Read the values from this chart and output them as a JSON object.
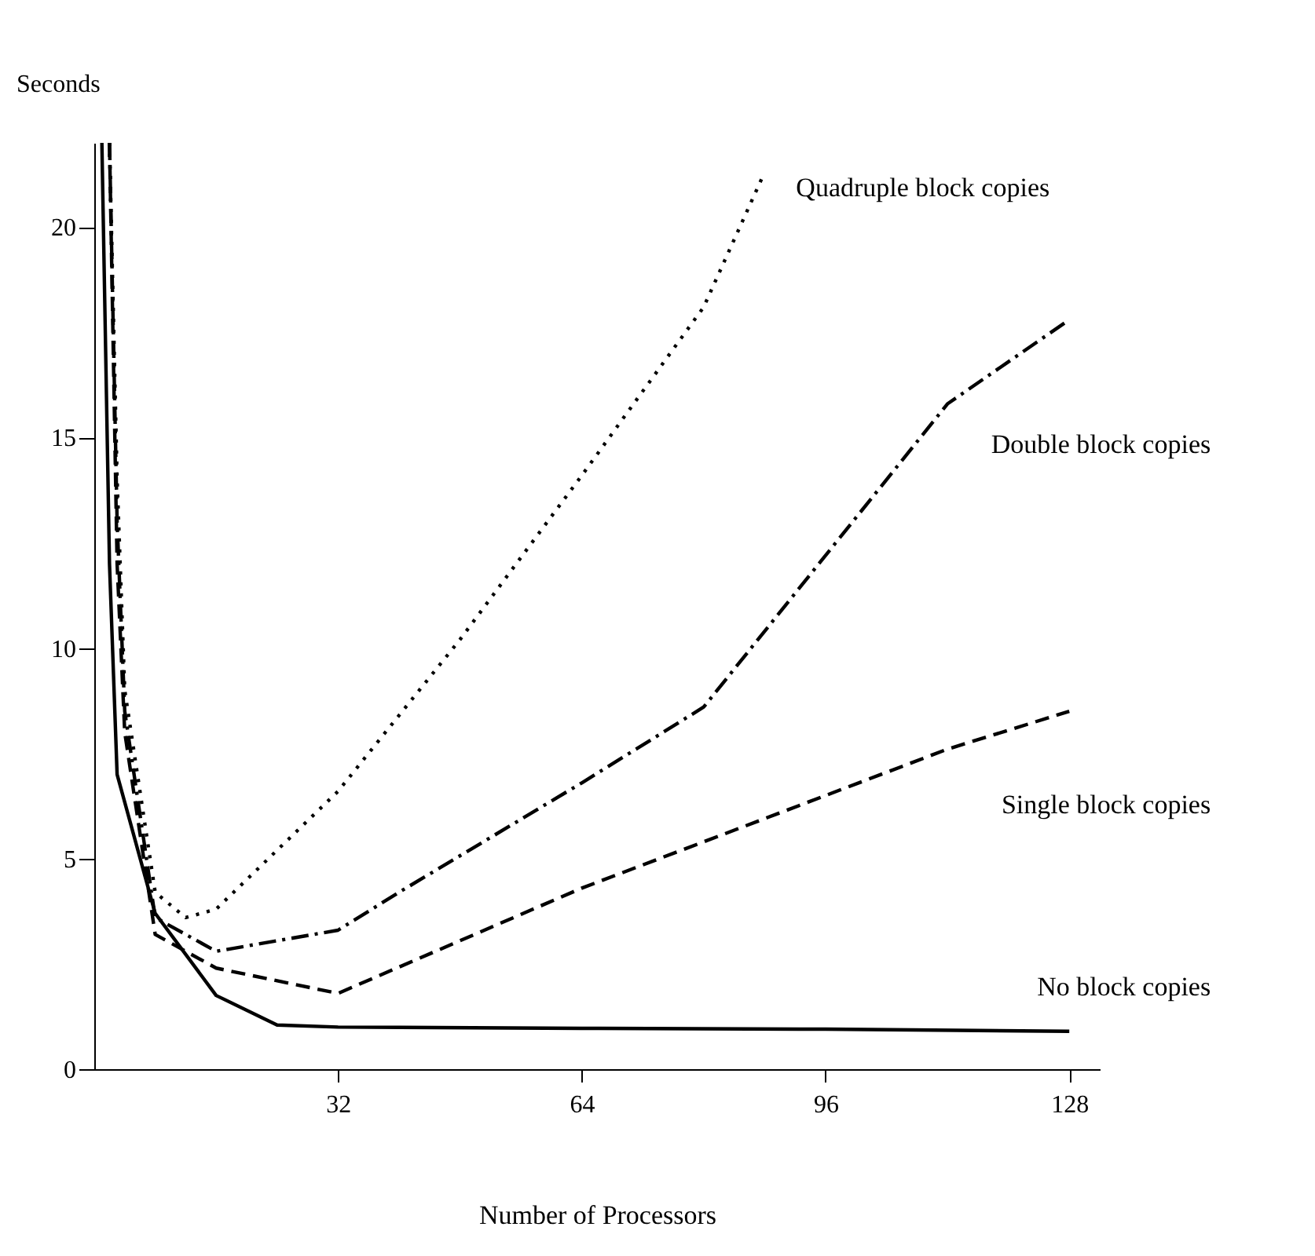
{
  "chart_data": {
    "type": "line",
    "xlabel": "Number of Processors",
    "ylabel": "Seconds",
    "xlim": [
      0,
      132
    ],
    "ylim": [
      0,
      22
    ],
    "xticks": [
      32,
      64,
      96,
      128
    ],
    "yticks": [
      0,
      5,
      10,
      15,
      20
    ],
    "grid": false,
    "legend": false,
    "series": [
      {
        "name": "No block copies",
        "color": "#000000",
        "line_style": "solid",
        "x": [
          1,
          2,
          3,
          8,
          16,
          24,
          32,
          64,
          96,
          128
        ],
        "values": [
          22,
          12,
          7,
          3.7,
          1.75,
          1.05,
          1.0,
          0.97,
          0.95,
          0.9
        ]
      },
      {
        "name": "Single block copies",
        "color": "#000000",
        "line_style": "dashed",
        "x": [
          2,
          3,
          4,
          8,
          16,
          32,
          64,
          96,
          112,
          128
        ],
        "values": [
          22,
          12,
          8,
          3.2,
          2.4,
          1.8,
          4.3,
          6.5,
          7.6,
          8.5
        ]
      },
      {
        "name": "Double block copies",
        "color": "#000000",
        "line_style": "dashdot",
        "x": [
          2,
          3,
          4,
          8,
          16,
          32,
          40,
          64,
          80,
          96,
          112,
          128
        ],
        "values": [
          22,
          13,
          8.5,
          3.6,
          2.8,
          3.3,
          4.2,
          6.8,
          8.6,
          12.2,
          15.8,
          17.8
        ]
      },
      {
        "name": "Quadruple block copies",
        "color": "#000000",
        "line_style": "dotted",
        "x": [
          2,
          3,
          4,
          8,
          12,
          16,
          24,
          32,
          48,
          64,
          80,
          88
        ],
        "values": [
          22,
          14,
          9,
          4.2,
          3.6,
          3.8,
          5.2,
          6.6,
          10.2,
          14.1,
          18.1,
          21.3
        ]
      }
    ]
  }
}
